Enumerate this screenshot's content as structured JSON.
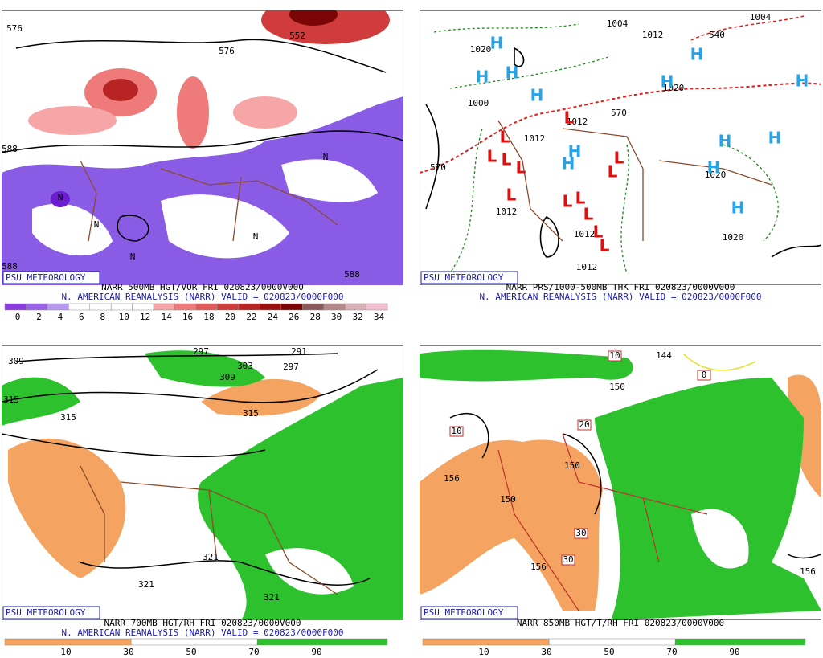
{
  "panels": [
    {
      "badge": "PSU METEOROLOGY",
      "line1": "NARR 500MB HGT/VOR FRI 020823/0000V000",
      "line2": "N. AMERICAN REANALYSIS (NARR) VALID = 020823/0000F000",
      "colorbar": {
        "labels": [
          "0",
          "2",
          "4",
          "6",
          "8",
          "10",
          "12",
          "14",
          "16",
          "18",
          "20",
          "22",
          "24",
          "26",
          "28",
          "30",
          "32",
          "34"
        ],
        "colors": [
          "#8a3ce0",
          "#9a62e6",
          "#b79af0",
          "#ffffff",
          "#ffffff",
          "#ffffff",
          "#ffffff",
          "#f6a6a6",
          "#ee7a7a",
          "#e05a5a",
          "#d03c3c",
          "#b82424",
          "#9a1010",
          "#7a0606",
          "#8a5a5a",
          "#b28888",
          "#d8b0b8",
          "#f0c0d0"
        ]
      },
      "contour_labels": [
        "576",
        "588",
        "552",
        "576",
        "588",
        "588",
        "N",
        "N",
        "N",
        "N",
        "N"
      ]
    },
    {
      "badge": "PSU METEOROLOGY",
      "line1": "NARR PRS/1000-500MB THK FRI 020823/0000V000",
      "line2": "N. AMERICAN REANALYSIS (NARR) VALID = 020823/0000F000",
      "contour_labels": [
        "1020",
        "1000",
        "1012",
        "1012",
        "1004",
        "1012",
        "1020",
        "1020",
        "1020",
        "1012",
        "1012",
        "1012",
        "570",
        "570",
        "540",
        "1004"
      ],
      "highs": [
        "H",
        "H",
        "H",
        "H",
        "H",
        "H",
        "H",
        "H",
        "H",
        "H",
        "H",
        "H",
        "H"
      ],
      "lows": [
        "L",
        "L",
        "L",
        "L",
        "L",
        "L",
        "L",
        "L",
        "L",
        "L",
        "L",
        "L",
        "L"
      ]
    },
    {
      "badge": "PSU METEOROLOGY",
      "line1": "NARR 700MB HGT/RH FRI 020823/0000V000",
      "line2": "N. AMERICAN REANALYSIS (NARR) VALID = 020823/0000F000",
      "colorbar": {
        "labels": [
          "10",
          "30",
          "50",
          "70",
          "90"
        ]
      },
      "contour_labels": [
        "309",
        "297",
        "291",
        "303",
        "309",
        "297",
        "315",
        "315",
        "315",
        "321",
        "321",
        "321"
      ]
    },
    {
      "badge": "PSU METEOROLOGY",
      "line1": "NARR 850MB HGT/T/RH FRI 020823/0000V000",
      "colorbar": {
        "labels": [
          "10",
          "30",
          "50",
          "70",
          "90"
        ]
      },
      "contour_labels": [
        "144",
        "150",
        "156",
        "150",
        "150",
        "156",
        "156"
      ],
      "boxed_labels": [
        "10",
        "10",
        "20",
        "30",
        "30",
        "0"
      ]
    }
  ]
}
